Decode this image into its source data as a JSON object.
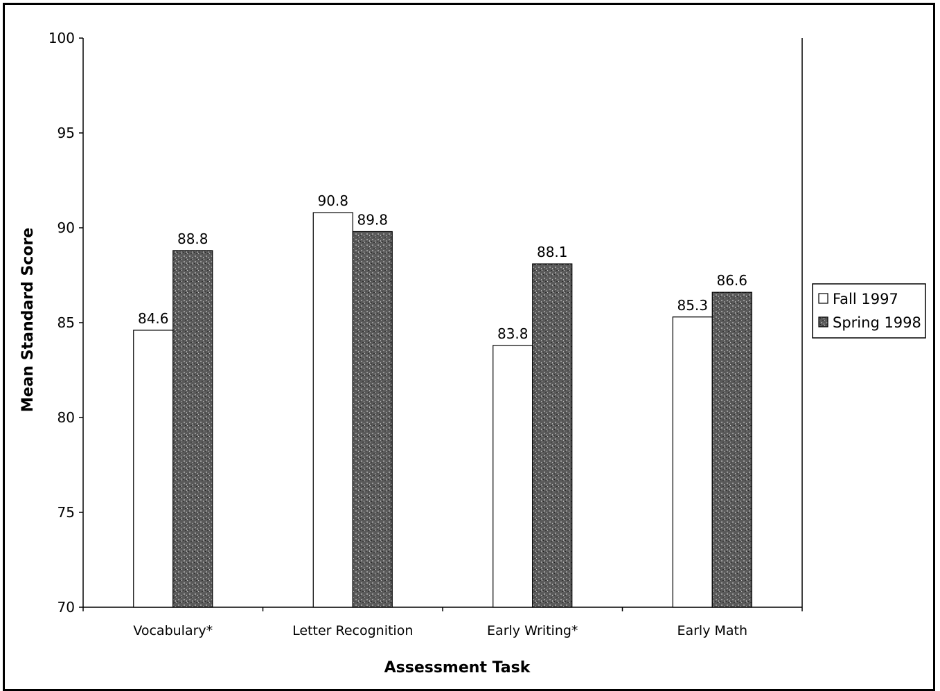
{
  "chart_data": {
    "type": "bar",
    "title": "",
    "xlabel": "Assessment Task",
    "ylabel": "Mean Standard Score",
    "categories": [
      "Vocabulary*",
      "Letter Recognition",
      "Early Writing*",
      "Early Math"
    ],
    "series": [
      {
        "name": "Fall 1997",
        "values": [
          84.6,
          90.8,
          83.8,
          85.3
        ],
        "color": "#ffffff"
      },
      {
        "name": "Spring 1998",
        "values": [
          88.8,
          89.8,
          88.1,
          86.6
        ],
        "color": "#6e6e6e"
      }
    ],
    "ylim": [
      70,
      100
    ],
    "yticks": [
      70,
      75,
      80,
      85,
      90,
      95,
      100
    ],
    "grid": false,
    "legend_position": "right"
  }
}
